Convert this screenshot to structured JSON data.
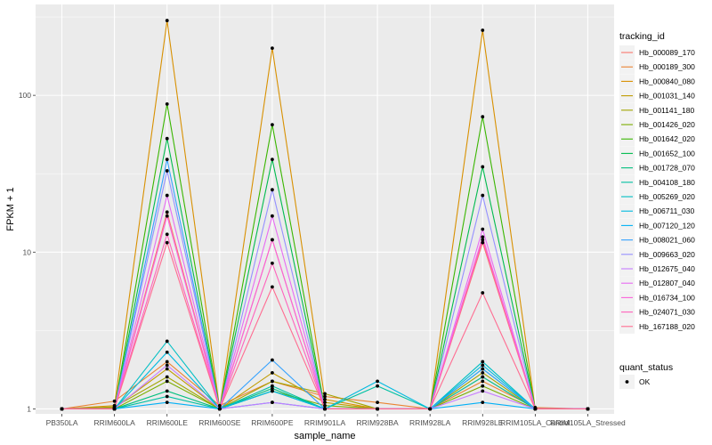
{
  "chart_data": {
    "type": "line",
    "xlabel": "sample_name",
    "ylabel": "FPKM + 1",
    "y_scale": "log10",
    "ylim": [
      0.93,
      380
    ],
    "y_ticks": [
      1,
      10,
      100
    ],
    "y_tick_labels": [
      "1",
      "10",
      "100"
    ],
    "categories": [
      "PB350LA",
      "RRIM600LA",
      "RRIM600LE",
      "RRIM600SE",
      "RRIM600PE",
      "RRIM901LA",
      "RRIM928BA",
      "RRIM928LA",
      "RRIM928LE",
      "RRIM105LA_Control",
      "RRIM105LA_Stressed"
    ],
    "grid": true,
    "legend": {
      "title": "tracking_id",
      "position": "right"
    },
    "series": [
      {
        "name": "Hb_000089_170",
        "color": "#F8766D",
        "values": [
          1.0,
          1.0,
          18.0,
          1.0,
          12.0,
          1.0,
          1.0,
          1.0,
          11.5,
          1.0,
          1.0
        ]
      },
      {
        "name": "Hb_000189_300",
        "color": "#EA8331",
        "values": [
          1.0,
          1.12,
          2.0,
          1.05,
          1.5,
          1.2,
          1.1,
          1.0,
          1.5,
          1.02,
          1.0
        ]
      },
      {
        "name": "Hb_000840_080",
        "color": "#D89000",
        "values": [
          1.0,
          1.05,
          300.0,
          1.0,
          200.0,
          1.15,
          1.0,
          1.0,
          260.0,
          1.0,
          1.0
        ]
      },
      {
        "name": "Hb_001031_140",
        "color": "#C09B00",
        "values": [
          1.0,
          1.02,
          1.8,
          1.0,
          1.7,
          1.1,
          1.0,
          1.0,
          1.6,
          1.0,
          1.0
        ]
      },
      {
        "name": "Hb_001141_180",
        "color": "#A3A500",
        "values": [
          1.0,
          1.03,
          1.6,
          1.0,
          1.5,
          1.25,
          1.0,
          1.0,
          1.7,
          1.0,
          1.0
        ]
      },
      {
        "name": "Hb_001426_020",
        "color": "#7CAE00",
        "values": [
          1.0,
          1.0,
          1.5,
          1.0,
          1.3,
          1.05,
          1.0,
          1.0,
          1.4,
          1.0,
          1.0
        ]
      },
      {
        "name": "Hb_001642_020",
        "color": "#39B600",
        "values": [
          1.0,
          1.0,
          88.0,
          1.0,
          65.0,
          1.0,
          1.0,
          1.0,
          73.0,
          1.0,
          1.0
        ]
      },
      {
        "name": "Hb_001652_100",
        "color": "#00BB4E",
        "values": [
          1.0,
          1.0,
          53.0,
          1.0,
          39.0,
          1.0,
          1.0,
          1.0,
          35.0,
          1.0,
          1.0
        ]
      },
      {
        "name": "Hb_001728_070",
        "color": "#00BF7D",
        "values": [
          1.0,
          1.0,
          1.3,
          1.0,
          1.35,
          1.0,
          1.0,
          1.0,
          1.8,
          1.0,
          1.0
        ]
      },
      {
        "name": "Hb_004108_180",
        "color": "#00C1A3",
        "values": [
          1.0,
          1.0,
          1.2,
          1.0,
          1.4,
          1.0,
          1.4,
          1.0,
          1.6,
          1.0,
          1.0
        ]
      },
      {
        "name": "Hb_005269_020",
        "color": "#00BFC4",
        "values": [
          1.0,
          1.0,
          2.7,
          1.0,
          1.3,
          1.0,
          1.0,
          1.0,
          2.0,
          1.0,
          1.0
        ]
      },
      {
        "name": "Hb_006711_030",
        "color": "#00BAE0",
        "values": [
          1.0,
          1.0,
          2.3,
          1.0,
          1.3,
          1.0,
          1.5,
          1.0,
          1.9,
          1.0,
          1.0
        ]
      },
      {
        "name": "Hb_007120_120",
        "color": "#00B0F6",
        "values": [
          1.0,
          1.0,
          1.1,
          1.0,
          1.1,
          1.0,
          1.0,
          1.0,
          1.1,
          1.0,
          1.0
        ]
      },
      {
        "name": "Hb_008021_060",
        "color": "#35A2FF",
        "values": [
          1.0,
          1.0,
          39.0,
          1.0,
          2.05,
          1.0,
          1.0,
          1.0,
          1.8,
          1.0,
          1.0
        ]
      },
      {
        "name": "Hb_009663_020",
        "color": "#9590FF",
        "values": [
          1.0,
          1.0,
          33.0,
          1.0,
          25.0,
          1.0,
          1.0,
          1.0,
          23.0,
          1.0,
          1.0
        ]
      },
      {
        "name": "Hb_012675_040",
        "color": "#C77CFF",
        "values": [
          1.0,
          1.0,
          1.9,
          1.0,
          1.1,
          1.0,
          1.0,
          1.0,
          1.3,
          1.0,
          1.0
        ]
      },
      {
        "name": "Hb_012807_040",
        "color": "#E76BF3",
        "values": [
          1.0,
          1.0,
          23.0,
          1.0,
          17.0,
          1.0,
          1.0,
          1.0,
          14.0,
          1.0,
          1.0
        ]
      },
      {
        "name": "Hb_016734_100",
        "color": "#FA62DB",
        "values": [
          1.0,
          1.0,
          17.0,
          1.0,
          12.0,
          1.0,
          1.0,
          1.0,
          12.5,
          1.0,
          1.0
        ]
      },
      {
        "name": "Hb_024071_030",
        "color": "#FF62BC",
        "values": [
          1.0,
          1.0,
          13.0,
          1.0,
          8.5,
          1.0,
          1.0,
          1.0,
          12.0,
          1.0,
          1.0
        ]
      },
      {
        "name": "Hb_167188_020",
        "color": "#FF6C91",
        "values": [
          1.0,
          1.0,
          11.5,
          1.0,
          6.0,
          1.0,
          1.0,
          1.0,
          5.5,
          1.0,
          1.0
        ]
      }
    ],
    "point_legend": {
      "title": "quant_status",
      "items": [
        "OK"
      ]
    },
    "style": {
      "panel_background": "#EBEBEB",
      "grid_major": "#FFFFFF",
      "point_color": "#000000"
    }
  }
}
